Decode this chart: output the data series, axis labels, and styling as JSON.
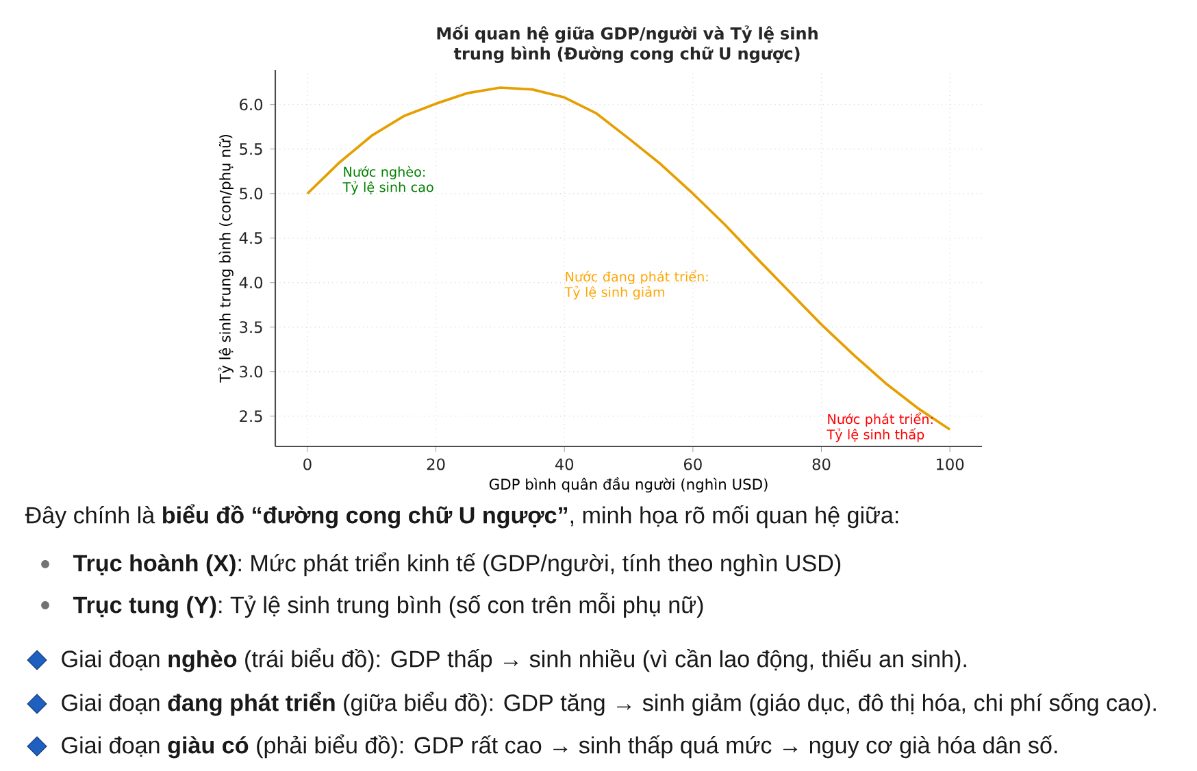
{
  "chart_data": {
    "type": "line",
    "title": "Mối quan hệ giữa GDP/người và Tỷ lệ sinh trung bình (Đường cong chữ U ngược)",
    "xlabel": "GDP bình quân đầu người (nghìn USD)",
    "ylabel": "Tỷ lệ sinh trung bình (con/phụ nữ)",
    "x": [
      0,
      5,
      10,
      15,
      20,
      25,
      30,
      35,
      40,
      45,
      50,
      55,
      60,
      65,
      70,
      75,
      80,
      85,
      90,
      95,
      100
    ],
    "series": [
      {
        "color": "#e69f00",
        "values": [
          5.0,
          5.35,
          5.65,
          5.87,
          6.01,
          6.13,
          6.19,
          6.17,
          6.08,
          5.9,
          5.62,
          5.33,
          5.0,
          4.65,
          4.27,
          3.9,
          3.53,
          3.19,
          2.87,
          2.59,
          2.35
        ]
      }
    ],
    "xlim": [
      -5,
      105
    ],
    "ylim": [
      2.16,
      6.39
    ],
    "xticks": [
      0,
      20,
      40,
      60,
      80,
      100
    ],
    "yticks": [
      {
        "value": 2.5,
        "label": "2.5"
      },
      {
        "value": 3,
        "label": "3.0"
      },
      {
        "value": 3.5,
        "label": "3.5"
      },
      {
        "value": 4,
        "label": "4.0"
      },
      {
        "value": 4.5,
        "label": "4.5"
      },
      {
        "value": 5,
        "label": "5.0"
      },
      {
        "value": 5.5,
        "label": "5.5"
      },
      {
        "value": 6,
        "label": "6.0"
      }
    ],
    "grid": true,
    "marker": "none",
    "line_style": "solid",
    "annotations": [
      "Nước nghèo: Tỷ lệ sinh cao",
      "Nước đang phát triển: Tỷ lệ sinh giảm",
      "Nước phát triển: Tỷ lệ sinh thấp",
      "Đây chính là **biểu đồ “đường cong chữ U ngược”**, minh họa rõ mối quan hệ giữa:",
      "**Trục hoành (X)**: Mức phát triển kinh tế (GDP/người, tính theo nghìn USD)",
      "**Trục tung (Y)**: Tỷ lệ sinh trung bình (số con trên mỗi phụ nữ)",
      "Giai đoạn **nghèo** (trái biểu đồ): GDP thấp → sinh nhiều (vì cần lao động, thiếu an sinh).",
      "Giai đoạn **đang phát triển** (giữa biểu đồ): GDP tăng → sinh giảm (giáo dục, đô thị hóa, chi phí sống cao).",
      "Giai đoạn **giàu có** (phải biểu đồ): GDP rất cao → sinh thấp quá mức → nguy cơ già hóa dân số."
    ]
  }
}
